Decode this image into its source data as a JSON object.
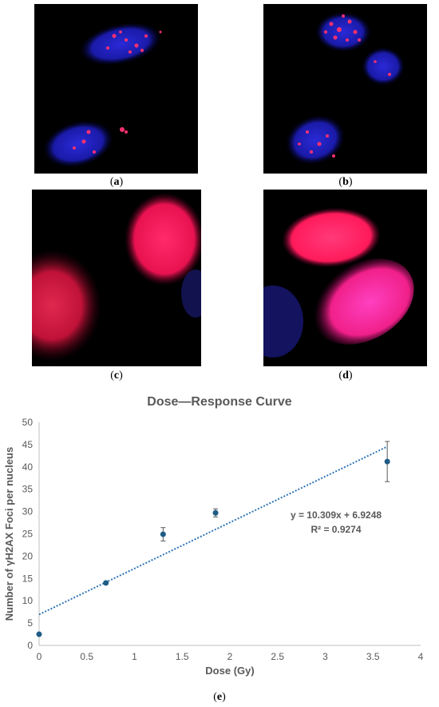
{
  "panels": [
    {
      "caption_letter": "a"
    },
    {
      "caption_letter": "b"
    },
    {
      "caption_letter": "c"
    },
    {
      "caption_letter": "d"
    }
  ],
  "figure_caption_letter": "e",
  "chart_data": {
    "type": "scatter",
    "title": "Dose—Response Curve",
    "xlabel": "Dose (Gy)",
    "ylabel": "Number of γH2AX Foci per nucleus",
    "xlim": [
      0,
      4
    ],
    "ylim": [
      0,
      50
    ],
    "xticks": [
      0,
      0.5,
      1,
      1.5,
      2,
      2.5,
      3,
      3.5,
      4
    ],
    "xtick_labels": [
      "0",
      "0.5",
      "1",
      "1.5",
      "2",
      "2.5",
      "3",
      "3.5",
      "4"
    ],
    "yticks": [
      0,
      5,
      10,
      15,
      20,
      25,
      30,
      35,
      40,
      45,
      50
    ],
    "grid": false,
    "marker_color": "#1f5c85",
    "trendline_color": "#2e75b6",
    "points": [
      {
        "x": 0,
        "y": 2.5,
        "err": 0
      },
      {
        "x": 0.7,
        "y": 14.0,
        "err": 0.3
      },
      {
        "x": 1.3,
        "y": 24.9,
        "err": 1.5
      },
      {
        "x": 1.85,
        "y": 29.7,
        "err": 0.9
      },
      {
        "x": 3.65,
        "y": 41.2,
        "err": 4.5
      }
    ],
    "trendline": {
      "slope": 10.309,
      "intercept": 6.9248,
      "x_range": [
        0,
        3.65
      ]
    },
    "equation_label": "y = 10.309x + 6.9248",
    "r2_label": "R² = 0.9274"
  }
}
